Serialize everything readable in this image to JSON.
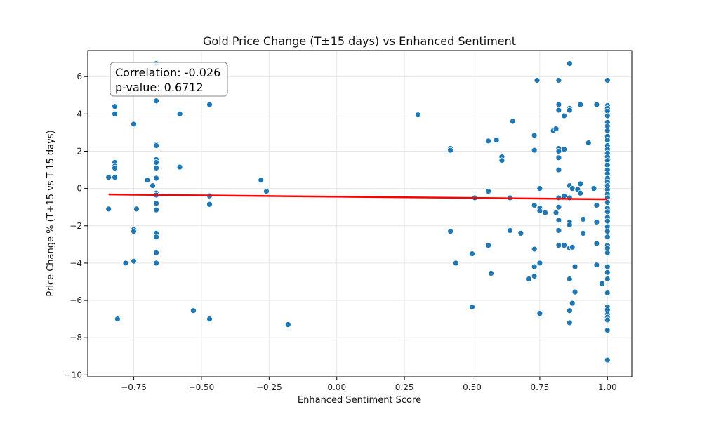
{
  "chart_data": {
    "type": "scatter",
    "title": "Gold Price Change (T±15 days) vs Enhanced Sentiment",
    "xlabel": "Enhanced Sentiment Score",
    "ylabel": "Price Change % (T+15 vs T-15 days)",
    "xlim": [
      -0.92,
      1.09
    ],
    "ylim": [
      -10.1,
      7.4
    ],
    "xticks": [
      -0.75,
      -0.5,
      -0.25,
      0.0,
      0.25,
      0.5,
      0.75,
      1.0
    ],
    "xtick_labels": [
      "−0.75",
      "−0.50",
      "−0.25",
      "0.00",
      "0.25",
      "0.50",
      "0.75",
      "1.00"
    ],
    "yticks": [
      -10,
      -8,
      -6,
      -4,
      -2,
      0,
      2,
      4,
      6
    ],
    "ytick_labels": [
      "−10",
      "−8",
      "−6",
      "−4",
      "−2",
      "0",
      "2",
      "4",
      "6"
    ],
    "grid": true,
    "point_color": "#1f77b4",
    "line_color": "#ff0000",
    "annotation": {
      "correlation": "Correlation: -0.026",
      "pvalue": "p-value: 0.6712"
    },
    "regression": {
      "x": [
        -0.843,
        1.0
      ],
      "y": [
        -0.32,
        -0.58
      ]
    },
    "points": [
      [
        -0.843,
        0.6
      ],
      [
        -0.843,
        -1.1
      ],
      [
        -0.82,
        4.4
      ],
      [
        -0.82,
        4.0
      ],
      [
        -0.82,
        1.4
      ],
      [
        -0.82,
        1.2
      ],
      [
        -0.82,
        1.1
      ],
      [
        -0.82,
        0.6
      ],
      [
        -0.81,
        -7.0
      ],
      [
        -0.78,
        -4.0
      ],
      [
        -0.75,
        3.45
      ],
      [
        -0.75,
        -2.2
      ],
      [
        -0.75,
        -2.3
      ],
      [
        -0.75,
        -3.9
      ],
      [
        -0.74,
        -1.1
      ],
      [
        -0.7,
        0.45
      ],
      [
        -0.68,
        0.15
      ],
      [
        -0.667,
        6.7
      ],
      [
        -0.667,
        4.7
      ],
      [
        -0.667,
        2.35
      ],
      [
        -0.667,
        2.3
      ],
      [
        -0.667,
        1.55
      ],
      [
        -0.667,
        1.4
      ],
      [
        -0.667,
        1.1
      ],
      [
        -0.667,
        0.55
      ],
      [
        -0.667,
        -0.25
      ],
      [
        -0.667,
        -0.35
      ],
      [
        -0.667,
        -0.8
      ],
      [
        -0.667,
        -1.15
      ],
      [
        -0.667,
        -2.4
      ],
      [
        -0.667,
        -2.6
      ],
      [
        -0.667,
        -3.45
      ],
      [
        -0.667,
        -4.0
      ],
      [
        -0.58,
        4.0
      ],
      [
        -0.58,
        1.15
      ],
      [
        -0.53,
        -6.55
      ],
      [
        -0.47,
        4.5
      ],
      [
        -0.47,
        -0.4
      ],
      [
        -0.47,
        -0.85
      ],
      [
        -0.47,
        -7.0
      ],
      [
        -0.28,
        0.45
      ],
      [
        -0.26,
        -0.15
      ],
      [
        -0.18,
        -7.3
      ],
      [
        0.3,
        3.95
      ],
      [
        0.42,
        2.15
      ],
      [
        0.42,
        2.05
      ],
      [
        0.42,
        -2.3
      ],
      [
        0.44,
        -4.0
      ],
      [
        0.5,
        -3.5
      ],
      [
        0.5,
        -6.35
      ],
      [
        0.51,
        -0.5
      ],
      [
        0.56,
        2.55
      ],
      [
        0.56,
        -0.15
      ],
      [
        0.56,
        -3.05
      ],
      [
        0.57,
        -4.55
      ],
      [
        0.59,
        2.6
      ],
      [
        0.61,
        1.7
      ],
      [
        0.61,
        1.5
      ],
      [
        0.64,
        -0.5
      ],
      [
        0.64,
        -2.25
      ],
      [
        0.65,
        3.6
      ],
      [
        0.68,
        -2.4
      ],
      [
        0.71,
        -4.85
      ],
      [
        0.73,
        2.85
      ],
      [
        0.73,
        2.05
      ],
      [
        0.73,
        -0.9
      ],
      [
        0.73,
        -3.25
      ],
      [
        0.73,
        -4.2
      ],
      [
        0.73,
        -4.7
      ],
      [
        0.74,
        5.8
      ],
      [
        0.75,
        0.0
      ],
      [
        0.75,
        -1.05
      ],
      [
        0.75,
        -1.2
      ],
      [
        0.75,
        -4.0
      ],
      [
        0.75,
        -6.7
      ],
      [
        0.77,
        -1.3
      ],
      [
        0.8,
        3.1
      ],
      [
        0.81,
        3.2
      ],
      [
        0.81,
        -1.3
      ],
      [
        0.82,
        5.8
      ],
      [
        0.82,
        4.5
      ],
      [
        0.82,
        4.2
      ],
      [
        0.82,
        2.15
      ],
      [
        0.82,
        2.0
      ],
      [
        0.82,
        1.65
      ],
      [
        0.82,
        1.0
      ],
      [
        0.82,
        -0.5
      ],
      [
        0.82,
        -1.0
      ],
      [
        0.82,
        -1.7
      ],
      [
        0.82,
        -2.25
      ],
      [
        0.82,
        -3.05
      ],
      [
        0.84,
        3.9
      ],
      [
        0.84,
        2.1
      ],
      [
        0.84,
        -0.4
      ],
      [
        0.84,
        -3.05
      ],
      [
        0.86,
        6.7
      ],
      [
        0.86,
        4.3
      ],
      [
        0.86,
        4.2
      ],
      [
        0.86,
        0.15
      ],
      [
        0.86,
        -0.5
      ],
      [
        0.86,
        -1.8
      ],
      [
        0.86,
        -1.95
      ],
      [
        0.86,
        -3.2
      ],
      [
        0.86,
        -4.85
      ],
      [
        0.86,
        -6.55
      ],
      [
        0.86,
        -7.2
      ],
      [
        0.87,
        0.0
      ],
      [
        0.87,
        -3.15
      ],
      [
        0.87,
        -6.15
      ],
      [
        0.88,
        -4.2
      ],
      [
        0.88,
        -5.55
      ],
      [
        0.89,
        -0.05
      ],
      [
        0.9,
        4.5
      ],
      [
        0.9,
        0.25
      ],
      [
        0.9,
        -0.25
      ],
      [
        0.91,
        -1.65
      ],
      [
        0.91,
        -2.4
      ],
      [
        0.93,
        2.45
      ],
      [
        0.95,
        0.0
      ],
      [
        0.96,
        4.5
      ],
      [
        0.96,
        -0.9
      ],
      [
        0.96,
        -1.8
      ],
      [
        0.96,
        -2.95
      ],
      [
        0.96,
        -4.1
      ],
      [
        0.98,
        -5.1
      ],
      [
        1.0,
        5.8
      ],
      [
        1.0,
        4.45
      ],
      [
        1.0,
        4.3
      ],
      [
        1.0,
        4.15
      ],
      [
        1.0,
        3.9
      ],
      [
        1.0,
        3.55
      ],
      [
        1.0,
        3.35
      ],
      [
        1.0,
        3.1
      ],
      [
        1.0,
        2.8
      ],
      [
        1.0,
        2.6
      ],
      [
        1.0,
        2.3
      ],
      [
        1.0,
        2.1
      ],
      [
        1.0,
        1.9
      ],
      [
        1.0,
        1.7
      ],
      [
        1.0,
        1.5
      ],
      [
        1.0,
        1.25
      ],
      [
        1.0,
        1.0
      ],
      [
        1.0,
        0.8
      ],
      [
        1.0,
        0.55
      ],
      [
        1.0,
        0.35
      ],
      [
        1.0,
        0.15
      ],
      [
        1.0,
        -0.05
      ],
      [
        1.0,
        -0.3
      ],
      [
        1.0,
        -0.5
      ],
      [
        1.0,
        -0.75
      ],
      [
        1.0,
        -1.05
      ],
      [
        1.0,
        -1.25
      ],
      [
        1.0,
        -1.55
      ],
      [
        1.0,
        -1.75
      ],
      [
        1.0,
        -2.05
      ],
      [
        1.0,
        -2.3
      ],
      [
        1.0,
        -2.6
      ],
      [
        1.0,
        -3.05
      ],
      [
        1.0,
        -3.2
      ],
      [
        1.0,
        -3.45
      ],
      [
        1.0,
        -4.2
      ],
      [
        1.0,
        -4.5
      ],
      [
        1.0,
        -4.85
      ],
      [
        1.0,
        -5.6
      ],
      [
        1.0,
        -6.35
      ],
      [
        1.0,
        -6.5
      ],
      [
        1.0,
        -6.75
      ],
      [
        1.0,
        -6.9
      ],
      [
        1.0,
        -7.05
      ],
      [
        1.0,
        -7.6
      ],
      [
        1.0,
        -9.2
      ]
    ]
  }
}
